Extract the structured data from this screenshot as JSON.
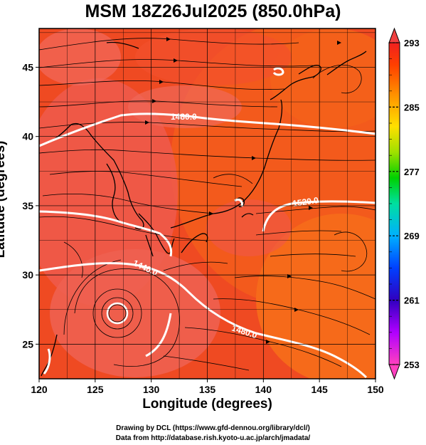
{
  "title": "MSM 18Z26Jul2025 (850.0hPa)",
  "xlabel": "Longitude (degrees)",
  "ylabel": "Latitude  (degrees)",
  "credits": {
    "line1": "Drawing by DCL (https://www.gfd-dennou.org/library/dcl/)",
    "line2": "Data from http://database.rish.kyoto-u.ac.jp/arch/jmadata/"
  },
  "map": {
    "lon_range": [
      120,
      150
    ],
    "lat_range": [
      22.5,
      47.8
    ],
    "x_ticks": [
      "120",
      "125",
      "130",
      "135",
      "140",
      "145",
      "150"
    ],
    "x_tick_values": [
      120,
      125,
      130,
      135,
      140,
      145,
      150
    ],
    "y_ticks": [
      "25",
      "30",
      "35",
      "40",
      "45"
    ],
    "y_tick_values": [
      25,
      30,
      35,
      40,
      45
    ],
    "contour_labels": [
      "1480.0",
      "1520.0",
      "1440.0",
      "1480.0"
    ],
    "colors": {
      "warm": "#f2451c",
      "hot": "#ee3a18",
      "pink": "#f06454",
      "orange": "#f4621c",
      "contour": "#ffffff",
      "vector": "#000000"
    }
  },
  "colorbar": {
    "labels": [
      "293",
      "285",
      "277",
      "269",
      "261",
      "253"
    ],
    "values": [
      293,
      285,
      277,
      269,
      261,
      253
    ],
    "stops": [
      "#ff40c0",
      "#b000ff",
      "#3000c0",
      "#0040ff",
      "#00b0ff",
      "#00e0a0",
      "#00d000",
      "#a0e000",
      "#ffe000",
      "#ff9000",
      "#ff4000",
      "#f02020"
    ]
  }
}
